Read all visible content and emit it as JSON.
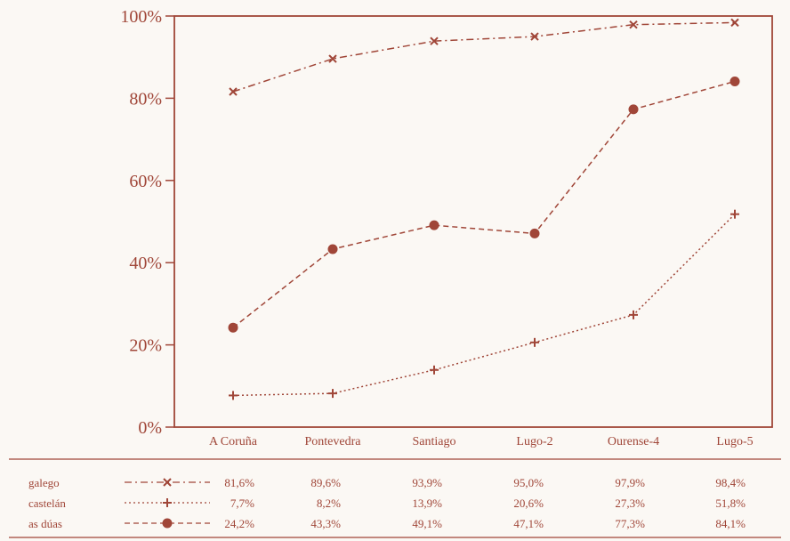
{
  "chart_data": {
    "type": "line",
    "categories": [
      "A Coruña",
      "Pontevedra",
      "Santiago",
      "Lugo-2",
      "Ourense-4",
      "Lugo-5"
    ],
    "ylim": [
      0,
      100
    ],
    "y_ticks": [
      "0%",
      "20%",
      "40%",
      "60%",
      "80%",
      "100%"
    ],
    "grid": false,
    "legend_placement": "table below chart",
    "series": [
      {
        "name": "galego",
        "marker": "x",
        "line_style": "dash-dot",
        "plotted_values": [
          81.6,
          89.6,
          93.9,
          95.0,
          97.9,
          98.4
        ],
        "value_labels": [
          "81,6%",
          "89,6%",
          "93,9%",
          "95,0%",
          "97,9%",
          "98,4%"
        ]
      },
      {
        "name": "castelán",
        "marker": "plus",
        "line_style": "dotted",
        "plotted_values": [
          7.7,
          8.2,
          13.9,
          20.6,
          27.3,
          51.8
        ],
        "value_labels": [
          "7,7%",
          "8,2%",
          "13,9%",
          "20,6%",
          "27,3%",
          "51,8%"
        ]
      },
      {
        "name": "as dúas",
        "marker": "circle",
        "line_style": "dashed",
        "plotted_values": [
          24.2,
          43.3,
          49.1,
          47.1,
          77.3,
          84.1
        ],
        "value_labels": [
          "24,2%",
          "43,3%",
          "49,1%",
          "47,1%",
          "77,3%",
          "84,1%"
        ]
      }
    ]
  },
  "colors": {
    "ink": "#a04638",
    "background": "#fbf8f4"
  }
}
